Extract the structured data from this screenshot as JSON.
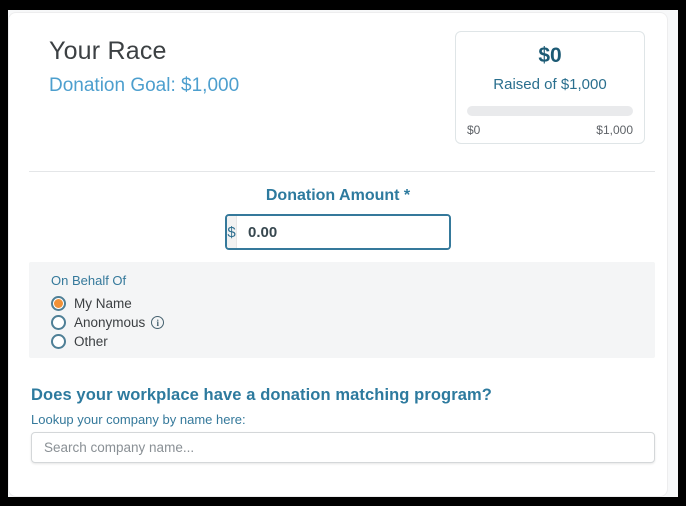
{
  "header": {
    "title": "Your Race",
    "subtitle": "Donation Goal: $1,000"
  },
  "goal_card": {
    "raised_amount": "$0",
    "raised_label": "Raised of $1,000",
    "progress_percent": 0,
    "range_min": "$0",
    "range_max": "$1,000"
  },
  "donation": {
    "label": "Donation Amount *",
    "currency_symbol": "$",
    "amount_value": "0.00"
  },
  "on_behalf": {
    "label": "On Behalf Of",
    "options": [
      {
        "label": "My Name",
        "selected": true,
        "info": false
      },
      {
        "label": "Anonymous",
        "selected": false,
        "info": true
      },
      {
        "label": "Other",
        "selected": false,
        "info": false
      }
    ],
    "info_icon_glyph": "i"
  },
  "matching": {
    "heading": "Does your workplace have a donation matching program?",
    "lookup_label": "Lookup your company by name here:",
    "search_placeholder": "Search company name..."
  },
  "colors": {
    "accent_teal": "#2d7a9e",
    "link_blue": "#4d9fce",
    "radio_selected_orange": "#f09137",
    "dark_text": "#3c4043"
  }
}
